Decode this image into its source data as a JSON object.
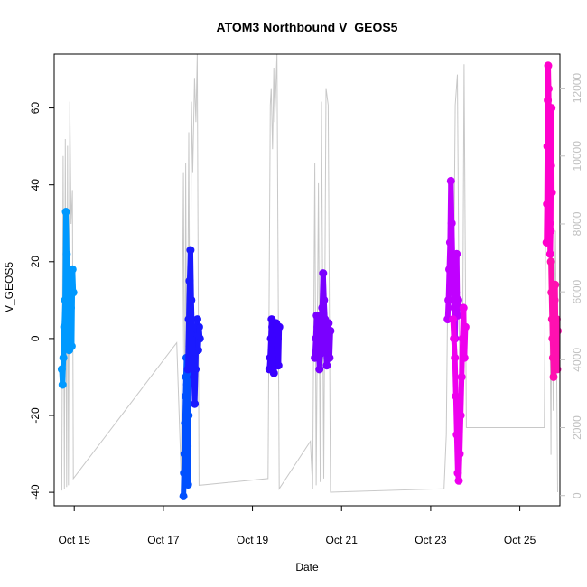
{
  "chart_data": {
    "type": "scatter",
    "title": "ATOM3 Northbound V_GEOS5",
    "xlabel": "Date",
    "ylabel": "V_GEOS5",
    "x_ticks": [
      "Oct 15",
      "Oct 17",
      "Oct 19",
      "Oct 21",
      "Oct 23",
      "Oct 25"
    ],
    "x_tick_days": [
      15,
      17,
      19,
      21,
      23,
      25
    ],
    "xlim": [
      14.55,
      25.9
    ],
    "ylim": [
      -43.5,
      74
    ],
    "y_ticks": [
      -40,
      -20,
      0,
      20,
      40,
      60
    ],
    "y2_ticks": [
      0,
      2000,
      4000,
      6000,
      8000,
      10000,
      12000
    ],
    "y2lim": [
      -300,
      13000
    ],
    "grid": false,
    "series": [
      {
        "flight_x": [
          14.72,
          14.98
        ],
        "values": [
          -8,
          -12,
          -5,
          3,
          10,
          33,
          22,
          15,
          5,
          -3,
          0,
          8,
          -2,
          18,
          12
        ],
        "color": "#0099ff"
      },
      {
        "flight_x": [
          17.45,
          17.6
        ],
        "values": [
          -41,
          -35,
          -30,
          -22,
          -15,
          -10,
          -5,
          -12,
          -28,
          -38,
          -20,
          -8,
          -2,
          3
        ],
        "color": "#0050ff"
      },
      {
        "flight_x": [
          17.55,
          17.82
        ],
        "values": [
          -8,
          5,
          15,
          23,
          10,
          0,
          -5,
          -10,
          -17,
          -8,
          2,
          5,
          -3,
          3,
          0
        ],
        "color": "#1a1aff"
      },
      {
        "flight_x": [
          19.38,
          19.6
        ],
        "values": [
          -8,
          -5,
          0,
          5,
          3,
          -2,
          -9,
          -6,
          2,
          4,
          -3,
          0,
          -7,
          3
        ],
        "color": "#3a00ff"
      },
      {
        "flight_x": [
          20.4,
          20.75
        ],
        "values": [
          -5,
          0,
          6,
          3,
          -2,
          -8,
          -4,
          2,
          8,
          17,
          10,
          5,
          -3,
          -7,
          0,
          4,
          -5,
          2
        ],
        "color": "#7a00ff"
      },
      {
        "flight_x": [
          23.38,
          23.62
        ],
        "values": [
          5,
          10,
          18,
          25,
          41,
          30,
          20,
          15,
          8,
          0,
          12,
          22,
          6,
          10
        ],
        "color": "#c000ff"
      },
      {
        "flight_x": [
          23.5,
          23.78
        ],
        "values": [
          5,
          0,
          -5,
          -15,
          -25,
          -35,
          -37,
          -30,
          -20,
          -10,
          0,
          8,
          -5,
          3
        ],
        "color": "#ee00ee"
      },
      {
        "flight_x": [
          25.6,
          25.72
        ],
        "values": [
          25,
          35,
          50,
          62,
          71,
          65,
          55,
          40,
          30,
          22,
          28,
          45,
          60,
          38
        ],
        "color": "#ff00cc"
      },
      {
        "flight_x": [
          25.7,
          25.85
        ],
        "values": [
          20,
          12,
          5,
          0,
          -5,
          -10,
          3,
          10,
          14,
          0,
          -4,
          5,
          -8,
          2
        ],
        "color": "#ff10b0"
      }
    ],
    "altitude_profile": {
      "color": "#c8c8c8",
      "points": [
        [
          14.72,
          150
        ],
        [
          14.75,
          10000
        ],
        [
          14.78,
          200
        ],
        [
          14.8,
          10500
        ],
        [
          14.83,
          250
        ],
        [
          14.85,
          10300
        ],
        [
          14.87,
          300
        ],
        [
          14.9,
          11600
        ],
        [
          14.93,
          8000
        ],
        [
          14.96,
          9000
        ],
        [
          14.98,
          500
        ],
        [
          17.3,
          4500
        ],
        [
          17.4,
          600
        ],
        [
          17.45,
          9500
        ],
        [
          17.48,
          700
        ],
        [
          17.5,
          9800
        ],
        [
          17.53,
          900
        ],
        [
          17.57,
          10700
        ],
        [
          17.6,
          1200
        ],
        [
          17.63,
          11600
        ],
        [
          17.66,
          9500
        ],
        [
          17.7,
          12300
        ],
        [
          17.73,
          11000
        ],
        [
          17.76,
          13000
        ],
        [
          17.8,
          300
        ],
        [
          19.35,
          500
        ],
        [
          19.4,
          11500
        ],
        [
          19.42,
          12000
        ],
        [
          19.45,
          10200
        ],
        [
          19.48,
          12600
        ],
        [
          19.5,
          11000
        ],
        [
          19.55,
          13000
        ],
        [
          19.6,
          200
        ],
        [
          20.3,
          1600
        ],
        [
          20.35,
          200
        ],
        [
          20.4,
          9800
        ],
        [
          20.43,
          300
        ],
        [
          20.48,
          9200
        ],
        [
          20.52,
          400
        ],
        [
          20.55,
          11600
        ],
        [
          20.6,
          500
        ],
        [
          20.65,
          12000
        ],
        [
          20.7,
          11500
        ],
        [
          20.75,
          100
        ],
        [
          23.3,
          200
        ],
        [
          23.35,
          1800
        ],
        [
          23.4,
          8500
        ],
        [
          23.45,
          9000
        ],
        [
          23.5,
          4000
        ],
        [
          23.55,
          11500
        ],
        [
          23.6,
          12400
        ],
        [
          23.65,
          3000
        ],
        [
          23.7,
          1200
        ],
        [
          23.72,
          5000
        ],
        [
          23.75,
          12700
        ],
        [
          23.8,
          2000
        ],
        [
          25.55,
          2000
        ],
        [
          25.58,
          8000
        ],
        [
          25.62,
          9000
        ],
        [
          25.65,
          11000
        ],
        [
          25.7,
          1200
        ],
        [
          25.72,
          8000
        ],
        [
          25.75,
          2500
        ],
        [
          25.8,
          7800
        ],
        [
          25.85,
          100
        ]
      ]
    }
  }
}
